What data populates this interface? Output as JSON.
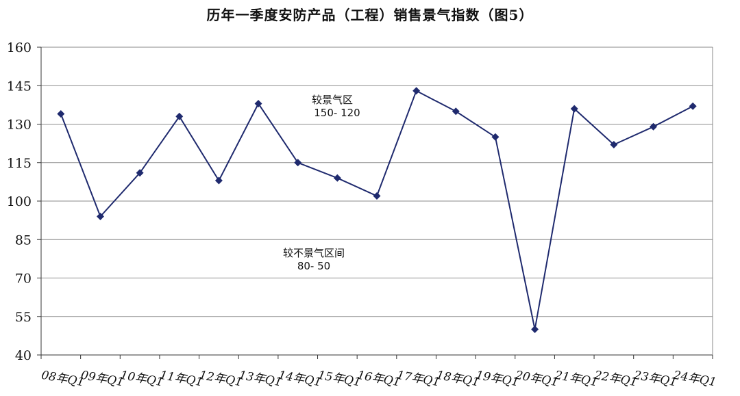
{
  "chart_data": {
    "type": "line",
    "title": "历年一季度安防产品（工程）销售景气指数（图5）",
    "xlabel": "",
    "ylabel": "",
    "ylim": [
      40,
      160
    ],
    "yticks": [
      40,
      55,
      70,
      85,
      100,
      115,
      130,
      145,
      160
    ],
    "grid": true,
    "legend": "none",
    "categories": [
      "08年Q1",
      "09年Q1",
      "10年Q1",
      "11年Q1",
      "12年Q1",
      "13年Q1",
      "14年Q1",
      "15年Q1",
      "16年Q1",
      "17年Q1",
      "18年Q1",
      "19年Q1",
      "20年Q1",
      "21年Q1",
      "22年Q1",
      "23年Q1",
      "24年Q1"
    ],
    "series": [
      {
        "values": [
          134,
          94,
          111,
          133,
          108,
          138,
          115,
          109,
          102,
          143,
          135,
          125,
          50,
          136,
          122,
          129,
          137
        ]
      }
    ],
    "color": "#1f2a6e",
    "annotations": [
      {
        "text": "较景气区",
        "text2": "150- 120"
      },
      {
        "text": "较不景气区间",
        "text2": "80- 50"
      }
    ]
  }
}
